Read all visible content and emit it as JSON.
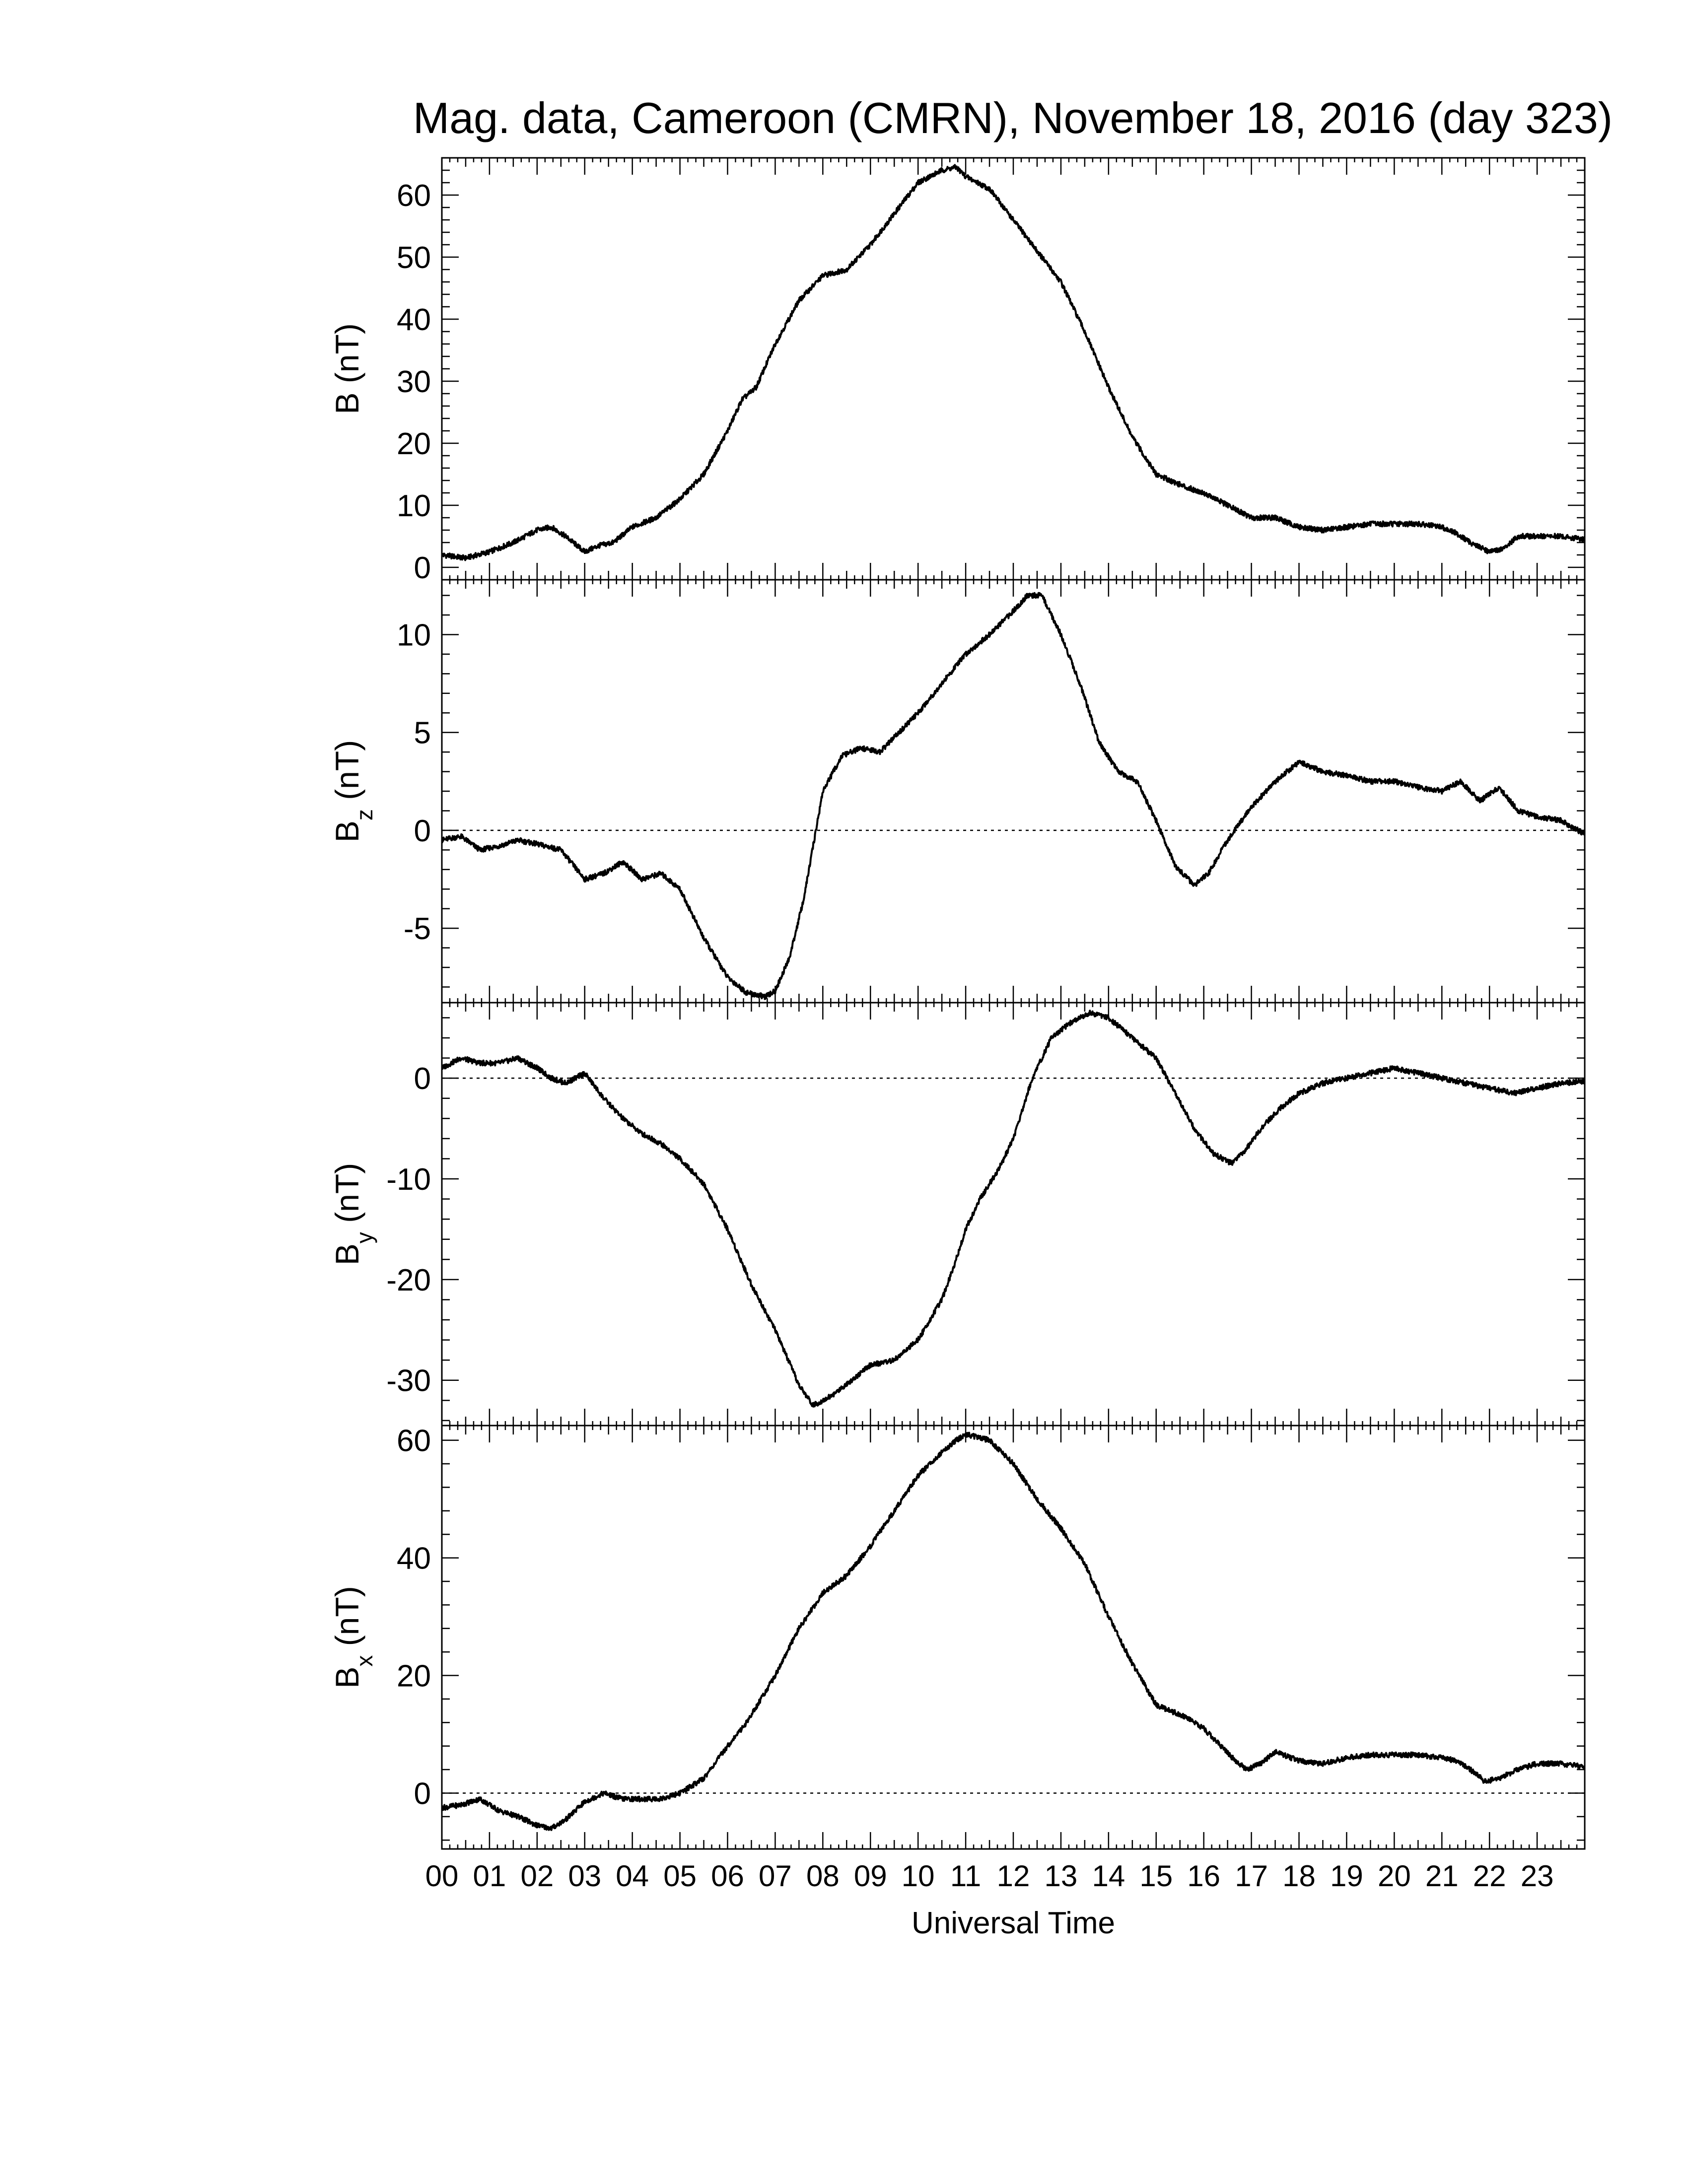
{
  "chart_data": {
    "title": "Mag. data, Cameroon (CMRN), November 18, 2016 (day 323)",
    "type": "line",
    "xlabel": "Universal Time",
    "x_unit": "hour",
    "xlim": [
      0,
      24
    ],
    "x_tick_labels": [
      "00",
      "01",
      "02",
      "03",
      "04",
      "05",
      "06",
      "07",
      "08",
      "09",
      "10",
      "11",
      "12",
      "13",
      "14",
      "15",
      "16",
      "17",
      "18",
      "19",
      "20",
      "21",
      "22",
      "23"
    ],
    "line_color": "#000000",
    "grid": false,
    "panels": [
      {
        "id": "B",
        "ylabel_main": "B",
        "ylabel_sub": "",
        "ylabel_unit": "(nT)",
        "ylim": [
          -2,
          66
        ],
        "yticks": [
          0,
          10,
          20,
          30,
          40,
          50,
          60
        ],
        "zero_line": false,
        "x": [
          0,
          0.5,
          1.0,
          1.5,
          2.0,
          2.3,
          2.6,
          3.0,
          3.3,
          3.6,
          4.0,
          4.5,
          5.0,
          5.5,
          6.0,
          6.3,
          6.6,
          7.0,
          7.5,
          8.0,
          8.5,
          9.0,
          9.5,
          10.0,
          10.5,
          10.8,
          11.0,
          11.5,
          12.0,
          12.5,
          13.0,
          13.5,
          14.0,
          14.5,
          15.0,
          15.3,
          15.6,
          16.0,
          16.5,
          17.0,
          17.5,
          18.0,
          18.5,
          19.0,
          19.5,
          20.0,
          20.5,
          21.0,
          21.3,
          21.6,
          22.0,
          22.3,
          22.6,
          23.0,
          23.5,
          24.0
        ],
        "values": [
          2,
          1.5,
          2.5,
          4,
          6,
          6.5,
          5,
          2.5,
          3.5,
          4,
          6.5,
          8,
          11,
          15,
          22,
          27,
          29,
          36,
          43,
          47,
          48,
          52,
          57,
          62,
          64,
          64.5,
          63,
          61,
          56,
          51,
          46,
          38,
          29,
          21,
          15,
          14,
          13,
          12,
          10,
          8,
          8,
          6.5,
          6,
          6.5,
          7,
          7,
          7,
          6.5,
          5.5,
          4,
          2.5,
          3,
          5,
          5,
          5,
          4.5
        ]
      },
      {
        "id": "Bz",
        "ylabel_main": "B",
        "ylabel_sub": "z",
        "ylabel_unit": "(nT)",
        "ylim": [
          -8.8,
          12.8
        ],
        "yticks": [
          -5,
          0,
          5,
          10
        ],
        "zero_line": true,
        "x": [
          0,
          0.4,
          0.8,
          1.2,
          1.6,
          2.0,
          2.5,
          3.0,
          3.4,
          3.8,
          4.2,
          4.6,
          5.0,
          5.5,
          6.0,
          6.4,
          6.8,
          7.0,
          7.3,
          7.6,
          8.0,
          8.4,
          8.8,
          9.2,
          9.6,
          10.0,
          10.5,
          11.0,
          11.5,
          12.0,
          12.3,
          12.6,
          13.0,
          13.4,
          13.8,
          14.2,
          14.6,
          15.0,
          15.4,
          15.8,
          16.1,
          16.5,
          17.0,
          17.5,
          18.0,
          18.5,
          19.0,
          19.5,
          20.0,
          20.5,
          21.0,
          21.4,
          21.8,
          22.2,
          22.6,
          23.0,
          23.5,
          24.0
        ],
        "values": [
          -0.5,
          -0.3,
          -1.0,
          -0.8,
          -0.5,
          -0.7,
          -1.0,
          -2.5,
          -2.2,
          -1.6,
          -2.5,
          -2.2,
          -3.0,
          -5.5,
          -7.5,
          -8.3,
          -8.5,
          -8.2,
          -6.5,
          -3.5,
          2.0,
          3.8,
          4.2,
          4.0,
          5.0,
          6.0,
          7.5,
          9.0,
          10.0,
          11.2,
          12.0,
          12.0,
          10.0,
          7.5,
          4.5,
          3.0,
          2.5,
          0.5,
          -1.8,
          -2.8,
          -2.2,
          -0.5,
          1.2,
          2.5,
          3.5,
          3.0,
          2.8,
          2.5,
          2.5,
          2.2,
          2.0,
          2.5,
          1.5,
          2.2,
          1.0,
          0.7,
          0.5,
          -0.2
        ]
      },
      {
        "id": "By",
        "ylabel_main": "B",
        "ylabel_sub": "y",
        "ylabel_unit": "(nT)",
        "ylim": [
          -34.5,
          7.5
        ],
        "yticks": [
          -30,
          -20,
          -10,
          0
        ],
        "zero_line": true,
        "x": [
          0,
          0.4,
          0.8,
          1.2,
          1.6,
          2.0,
          2.3,
          2.6,
          3.0,
          3.4,
          3.8,
          4.2,
          4.6,
          5.0,
          5.5,
          6.0,
          6.5,
          7.0,
          7.5,
          7.8,
          8.2,
          8.6,
          9.0,
          9.5,
          10.0,
          10.5,
          10.8,
          11.0,
          11.3,
          11.7,
          12.0,
          12.4,
          12.8,
          13.2,
          13.6,
          14.0,
          14.5,
          15.0,
          15.4,
          15.8,
          16.2,
          16.6,
          16.9,
          17.2,
          17.6,
          18.0,
          18.5,
          19.0,
          19.5,
          20.0,
          20.5,
          21.0,
          21.5,
          22.0,
          22.5,
          23.0,
          23.5,
          24.0
        ],
        "values": [
          1.0,
          2.0,
          1.5,
          1.5,
          2.0,
          1.0,
          0,
          -0.5,
          0.5,
          -2.0,
          -4.0,
          -5.5,
          -6.5,
          -8.0,
          -10.5,
          -15.0,
          -20.5,
          -25.0,
          -30.5,
          -32.5,
          -31.5,
          -30.0,
          -28.5,
          -28.0,
          -26.0,
          -22.0,
          -18.0,
          -15.0,
          -12.0,
          -9.0,
          -6.0,
          0,
          4.0,
          5.5,
          6.5,
          6.0,
          4.0,
          2.0,
          -1.5,
          -5.0,
          -7.5,
          -8.5,
          -7.0,
          -5.0,
          -3.0,
          -1.5,
          -0.5,
          0,
          0.5,
          1.0,
          0.5,
          0,
          -0.5,
          -1.0,
          -1.5,
          -1.0,
          -0.5,
          -0.3
        ]
      },
      {
        "id": "Bx",
        "ylabel_main": "B",
        "ylabel_sub": "x",
        "ylabel_unit": "(nT)",
        "ylim": [
          -9.5,
          62.5
        ],
        "yticks": [
          0,
          20,
          40,
          60
        ],
        "zero_line": true,
        "x": [
          0,
          0.4,
          0.8,
          1.2,
          1.6,
          2.0,
          2.3,
          2.6,
          3.0,
          3.4,
          3.8,
          4.2,
          4.6,
          5.0,
          5.5,
          6.0,
          6.4,
          7.0,
          7.5,
          8.0,
          8.5,
          9.0,
          9.5,
          10.0,
          10.5,
          10.8,
          11.0,
          11.5,
          12.0,
          12.5,
          13.0,
          13.5,
          14.0,
          14.5,
          15.0,
          15.3,
          15.6,
          16.0,
          16.3,
          16.6,
          16.9,
          17.2,
          17.5,
          18.0,
          18.5,
          19.0,
          19.5,
          20.0,
          20.5,
          21.0,
          21.3,
          21.6,
          21.9,
          22.2,
          22.6,
          23.0,
          23.5,
          24.0
        ],
        "values": [
          -2.5,
          -2.0,
          -1.0,
          -3.0,
          -4.0,
          -5.5,
          -6.0,
          -4.5,
          -1.5,
          0,
          -1.0,
          -1.0,
          -1.0,
          0,
          2.5,
          8.0,
          12.0,
          20.0,
          28.0,
          34.0,
          37.0,
          42.0,
          48.0,
          54.0,
          58.0,
          60.0,
          61.0,
          60.0,
          56.0,
          50.0,
          45.0,
          39.0,
          30.0,
          22.0,
          15.0,
          14.0,
          13.0,
          11.0,
          8.5,
          6.0,
          4.0,
          5.0,
          7.0,
          5.5,
          5.0,
          6.0,
          6.5,
          6.5,
          6.5,
          6.0,
          5.5,
          4.0,
          2.0,
          2.5,
          4.0,
          5.0,
          5.0,
          4.5
        ]
      }
    ]
  }
}
